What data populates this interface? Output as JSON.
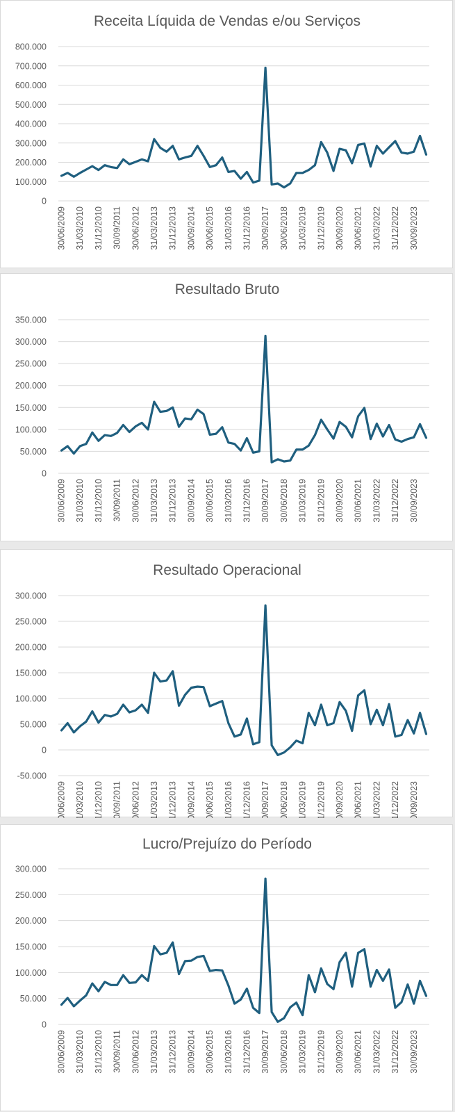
{
  "colors": {
    "line": "#1f5f7f",
    "grid": "#d9d9d9",
    "text": "#595959"
  },
  "x_tick_labels": [
    "30/06/2009",
    "31/03/2010",
    "31/12/2010",
    "30/09/2011",
    "30/06/2012",
    "31/03/2013",
    "31/12/2013",
    "30/09/2014",
    "30/06/2015",
    "31/03/2016",
    "31/12/2016",
    "30/09/2017",
    "30/06/2018",
    "31/03/2019",
    "31/12/2019",
    "30/09/2020",
    "30/06/2021",
    "31/03/2022",
    "31/12/2022",
    "30/09/2023"
  ],
  "chart_data": [
    {
      "type": "line",
      "title": "Receita Líquida de Vendas e/ou Serviços",
      "ylim": [
        0,
        800000
      ],
      "yticks": [
        0,
        100000,
        200000,
        300000,
        400000,
        500000,
        600000,
        700000,
        800000
      ],
      "ytick_labels": [
        "0",
        "100.000",
        "200.000",
        "300.000",
        "400.000",
        "500.000",
        "600.000",
        "700.000",
        "800.000"
      ],
      "grid": true,
      "values": [
        130000,
        145000,
        125000,
        145000,
        162000,
        180000,
        160000,
        185000,
        175000,
        170000,
        215000,
        190000,
        202000,
        215000,
        205000,
        320000,
        275000,
        255000,
        285000,
        215000,
        225000,
        233000,
        285000,
        233000,
        175000,
        185000,
        225000,
        150000,
        155000,
        115000,
        150000,
        95000,
        105000,
        690000,
        85000,
        90000,
        70000,
        90000,
        145000,
        145000,
        160000,
        185000,
        305000,
        250000,
        155000,
        270000,
        262000,
        195000,
        290000,
        297000,
        178000,
        285000,
        245000,
        278000,
        310000,
        250000,
        245000,
        255000,
        337000,
        240000
      ]
    },
    {
      "type": "line",
      "title": "Resultado Bruto",
      "ylim": [
        0,
        350000
      ],
      "yticks": [
        0,
        50000,
        100000,
        150000,
        200000,
        250000,
        300000,
        350000
      ],
      "ytick_labels": [
        "0",
        "50.000",
        "100.000",
        "150.000",
        "200.000",
        "250.000",
        "300.000",
        "350.000"
      ],
      "grid": true,
      "values": [
        52000,
        62000,
        45000,
        62000,
        67000,
        93000,
        74000,
        87000,
        85000,
        92000,
        110000,
        94000,
        107000,
        115000,
        100000,
        163000,
        140000,
        142000,
        150000,
        106000,
        125000,
        123000,
        145000,
        135000,
        88000,
        90000,
        105000,
        70000,
        67000,
        52000,
        80000,
        47000,
        50000,
        313000,
        25000,
        32000,
        27000,
        29000,
        54000,
        54000,
        63000,
        87000,
        122000,
        100000,
        79000,
        117000,
        106000,
        82000,
        130000,
        149000,
        78000,
        113000,
        84000,
        110000,
        77000,
        72000,
        78000,
        82000,
        112000,
        81000
      ]
    },
    {
      "type": "line",
      "title": "Resultado Operacional",
      "ylim": [
        -50000,
        300000
      ],
      "yticks": [
        -50000,
        0,
        50000,
        100000,
        150000,
        200000,
        250000,
        300000
      ],
      "ytick_labels": [
        "-50.000",
        "0",
        "50.000",
        "100.000",
        "150.000",
        "200.000",
        "250.000",
        "300.000"
      ],
      "grid": true,
      "values": [
        38000,
        52000,
        34000,
        46000,
        55000,
        75000,
        53000,
        68000,
        65000,
        70000,
        88000,
        73000,
        77000,
        88000,
        72000,
        150000,
        133000,
        135000,
        153000,
        86000,
        107000,
        121000,
        123000,
        122000,
        85000,
        90000,
        95000,
        52000,
        26000,
        30000,
        61000,
        11000,
        15000,
        281000,
        9000,
        -10000,
        -5000,
        5000,
        18000,
        13000,
        72000,
        48000,
        88000,
        48000,
        52000,
        93000,
        76000,
        37000,
        106000,
        116000,
        50000,
        78000,
        48000,
        89000,
        26000,
        29000,
        58000,
        32000,
        72000,
        31000
      ]
    },
    {
      "type": "line",
      "title": "Lucro/Prejuízo do Período",
      "ylim": [
        0,
        300000
      ],
      "yticks": [
        0,
        50000,
        100000,
        150000,
        200000,
        250000,
        300000
      ],
      "ytick_labels": [
        "0",
        "50.000",
        "100.000",
        "150.000",
        "200.000",
        "250.000",
        "300.000"
      ],
      "grid": true,
      "values": [
        38000,
        51000,
        35000,
        46000,
        56000,
        79000,
        64000,
        82000,
        76000,
        76000,
        95000,
        80000,
        81000,
        95000,
        84000,
        151000,
        135000,
        138000,
        158000,
        97000,
        122000,
        123000,
        130000,
        132000,
        103000,
        105000,
        104000,
        75000,
        40000,
        48000,
        69000,
        32000,
        22000,
        281000,
        24000,
        5000,
        12000,
        33000,
        42000,
        18000,
        95000,
        62000,
        108000,
        78000,
        68000,
        120000,
        138000,
        73000,
        138000,
        145000,
        73000,
        105000,
        84000,
        106000,
        32000,
        43000,
        77000,
        40000,
        84000,
        55000
      ]
    }
  ]
}
